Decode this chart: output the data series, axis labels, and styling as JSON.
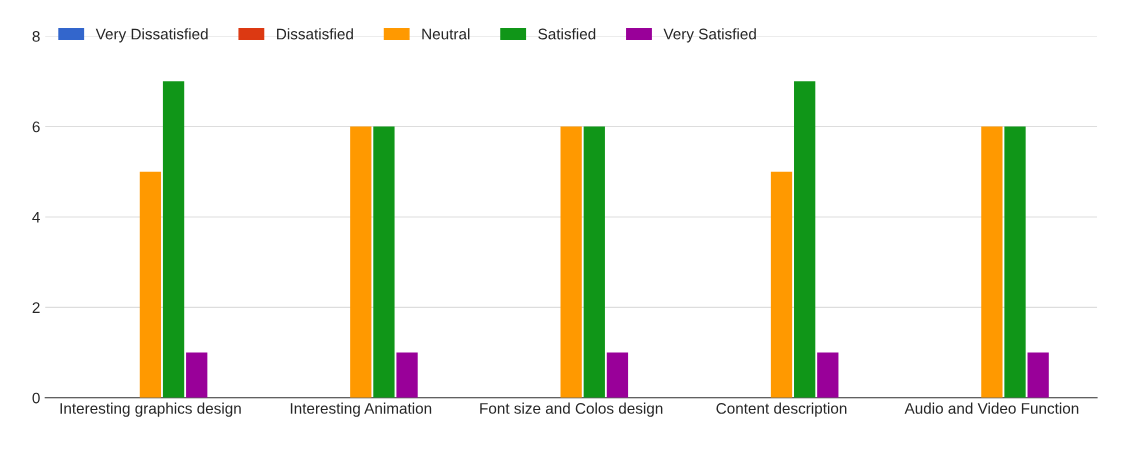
{
  "chart_data": {
    "type": "bar",
    "categories": [
      "Interesting graphics design",
      "Interesting Animation",
      "Font size and Colos design",
      "Content description",
      "Audio and Video Function"
    ],
    "series": [
      {
        "name": "Very Dissatisfied",
        "color": "#3366cc",
        "values": [
          0,
          0,
          0,
          0,
          0
        ]
      },
      {
        "name": "Dissatisfied",
        "color": "#dc3912",
        "values": [
          0,
          0,
          0,
          0,
          0
        ]
      },
      {
        "name": "Neutral",
        "color": "#ff9900",
        "values": [
          5,
          6,
          6,
          5,
          6
        ]
      },
      {
        "name": "Satisfied",
        "color": "#109618",
        "values": [
          7,
          6,
          6,
          7,
          6
        ]
      },
      {
        "name": "Very Satisfied",
        "color": "#990099",
        "values": [
          1,
          1,
          1,
          1,
          1
        ]
      }
    ],
    "ylim": [
      0,
      8
    ],
    "yticks": [
      0,
      2,
      4,
      6,
      8
    ],
    "grid": "y",
    "legend": "top left"
  }
}
